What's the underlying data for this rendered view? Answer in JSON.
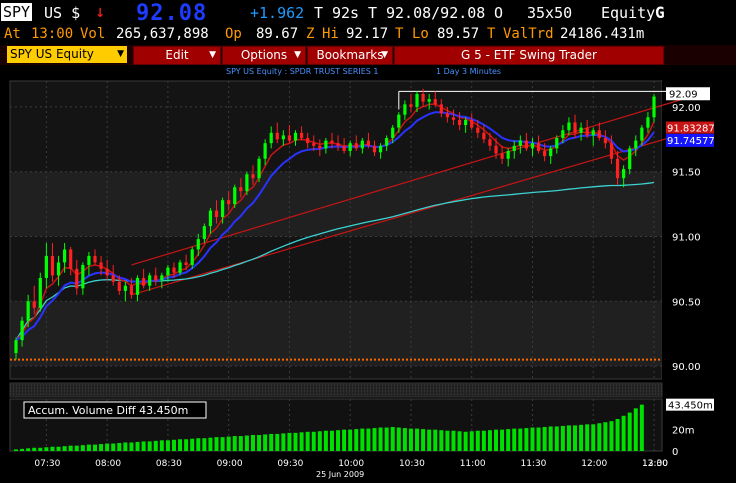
{
  "header": {
    "ticker": "SPY",
    "market": "US $",
    "direction_arrow": "↓",
    "last_price": "92.08",
    "change": "+1.962",
    "t_label": "T",
    "time_code": "92s",
    "t_label2": "T",
    "bid_ask": "92.08/92.08",
    "o_label": "O",
    "size": "35x50",
    "asset_class": "Equity",
    "asset_key": "G"
  },
  "quote_line": {
    "at_label": "At",
    "time": "13:00",
    "vol_label": "Vol",
    "volume": "265,637,898",
    "op_label": "Op",
    "open": "89.67",
    "z_label": "Z",
    "hi_label": "Hi",
    "high": "92.17",
    "t_label": "T",
    "lo_label": "Lo",
    "low": "89.57",
    "t_label2": "T",
    "valtrd_label": "ValTrd",
    "valtrd": "24186.431m"
  },
  "toolbar": {
    "security": "SPY US Equity",
    "edit": "Edit",
    "options": "Options",
    "bookmarks": "Bookmarks",
    "function_title": "G 5 - ETF Swing Trader"
  },
  "subtitle": {
    "security_desc": "SPY US Equity : SPDR TRUST SERIES 1",
    "period": "1 Day  3 Minutes"
  },
  "colors": {
    "up_candle": "#00ff00",
    "down_candle": "#ff2020",
    "ma_fast": "#c81414",
    "ma_slow": "#2a32ff",
    "vwap": "#3cd2d2",
    "trendline": "#c81414",
    "volume_bar": "#00e000",
    "price_box_ma_slow": "#1414ff",
    "price_box_ma_fast": "#c81414"
  },
  "price_panel": {
    "last_price_label": "92.09",
    "ma_fast_label": "91.83287",
    "ma_slow_label": "91.74577",
    "ticks": [
      "92.00",
      "91.50",
      "91.00",
      "90.50",
      "90.00"
    ]
  },
  "volume_panel": {
    "legend": "Accum. Volume Diff  43.450m",
    "last_label": "43.450m",
    "ticks": [
      "20m",
      "0"
    ]
  },
  "x_axis": {
    "ticks": [
      "07:30",
      "08:00",
      "08:30",
      "09:00",
      "09:30",
      "10:00",
      "10:30",
      "11:00",
      "11:30",
      "12:00",
      "12:30",
      "13:00"
    ],
    "date": "25 Jun 2009"
  },
  "chart_data": {
    "type": "candlestick",
    "interval": "3 Minutes",
    "ylim": [
      89.9,
      92.2
    ],
    "time_range": [
      "07:15",
      "13:00"
    ],
    "ohlc": [
      [
        90.1,
        90.22,
        90.05,
        90.2
      ],
      [
        90.2,
        90.38,
        90.15,
        90.35
      ],
      [
        90.35,
        90.55,
        90.3,
        90.5
      ],
      [
        90.5,
        90.62,
        90.4,
        90.45
      ],
      [
        90.45,
        90.72,
        90.42,
        90.68
      ],
      [
        90.68,
        90.95,
        90.6,
        90.85
      ],
      [
        90.85,
        90.95,
        90.65,
        90.7
      ],
      [
        90.7,
        90.85,
        90.62,
        90.8
      ],
      [
        90.8,
        90.95,
        90.72,
        90.9
      ],
      [
        90.9,
        90.92,
        90.7,
        90.75
      ],
      [
        90.75,
        90.82,
        90.55,
        90.6
      ],
      [
        90.6,
        90.8,
        90.55,
        90.78
      ],
      [
        90.78,
        90.88,
        90.7,
        90.85
      ],
      [
        90.85,
        90.9,
        90.78,
        90.8
      ],
      [
        90.8,
        90.85,
        90.7,
        90.75
      ],
      [
        90.75,
        90.82,
        90.66,
        90.7
      ],
      [
        90.7,
        90.78,
        90.62,
        90.65
      ],
      [
        90.65,
        90.7,
        90.55,
        90.58
      ],
      [
        90.58,
        90.65,
        90.5,
        90.62
      ],
      [
        90.62,
        90.68,
        90.52,
        90.55
      ],
      [
        90.55,
        90.7,
        90.5,
        90.68
      ],
      [
        90.68,
        90.75,
        90.6,
        90.62
      ],
      [
        90.62,
        90.72,
        90.58,
        90.7
      ],
      [
        90.7,
        90.76,
        90.62,
        90.66
      ],
      [
        90.66,
        90.72,
        90.6,
        90.7
      ],
      [
        90.7,
        90.78,
        90.65,
        90.76
      ],
      [
        90.76,
        90.8,
        90.68,
        90.72
      ],
      [
        90.72,
        90.82,
        90.7,
        90.8
      ],
      [
        90.8,
        90.86,
        90.74,
        90.78
      ],
      [
        90.78,
        90.92,
        90.75,
        90.9
      ],
      [
        90.9,
        91.02,
        90.85,
        90.98
      ],
      [
        90.98,
        91.1,
        90.95,
        91.08
      ],
      [
        91.08,
        91.22,
        91.02,
        91.2
      ],
      [
        91.2,
        91.28,
        91.1,
        91.15
      ],
      [
        91.15,
        91.3,
        91.1,
        91.28
      ],
      [
        91.28,
        91.35,
        91.2,
        91.25
      ],
      [
        91.25,
        91.4,
        91.22,
        91.38
      ],
      [
        91.38,
        91.45,
        91.3,
        91.35
      ],
      [
        91.35,
        91.5,
        91.32,
        91.48
      ],
      [
        91.48,
        91.55,
        91.4,
        91.45
      ],
      [
        91.45,
        91.62,
        91.42,
        91.6
      ],
      [
        91.6,
        91.75,
        91.55,
        91.72
      ],
      [
        91.72,
        91.85,
        91.68,
        91.8
      ],
      [
        91.8,
        91.88,
        91.72,
        91.75
      ],
      [
        91.75,
        91.82,
        91.7,
        91.78
      ],
      [
        91.78,
        91.86,
        91.72,
        91.74
      ],
      [
        91.74,
        91.82,
        91.7,
        91.8
      ],
      [
        91.8,
        91.85,
        91.74,
        91.76
      ],
      [
        91.76,
        91.8,
        91.68,
        91.72
      ],
      [
        91.72,
        91.78,
        91.66,
        91.7
      ],
      [
        91.7,
        91.75,
        91.62,
        91.68
      ],
      [
        91.68,
        91.76,
        91.64,
        91.74
      ],
      [
        91.74,
        91.8,
        91.68,
        91.72
      ],
      [
        91.72,
        91.78,
        91.66,
        91.7
      ],
      [
        91.7,
        91.76,
        91.64,
        91.66
      ],
      [
        91.66,
        91.74,
        91.62,
        91.72
      ],
      [
        91.72,
        91.78,
        91.66,
        91.68
      ],
      [
        91.68,
        91.76,
        91.64,
        91.74
      ],
      [
        91.74,
        91.8,
        91.68,
        91.7
      ],
      [
        91.7,
        91.74,
        91.62,
        91.65
      ],
      [
        91.65,
        91.72,
        91.6,
        91.7
      ],
      [
        91.7,
        91.78,
        91.66,
        91.76
      ],
      [
        91.76,
        91.86,
        91.72,
        91.84
      ],
      [
        91.84,
        91.96,
        91.8,
        91.94
      ],
      [
        91.94,
        92.05,
        91.9,
        92.02
      ],
      [
        92.02,
        92.1,
        91.96,
        92.0
      ],
      [
        92.0,
        92.12,
        91.96,
        92.1
      ],
      [
        92.1,
        92.14,
        92.0,
        92.04
      ],
      [
        92.04,
        92.1,
        91.98,
        92.06
      ],
      [
        92.06,
        92.12,
        92.0,
        92.02
      ],
      [
        92.02,
        92.06,
        91.92,
        91.95
      ],
      [
        91.95,
        92.0,
        91.88,
        91.92
      ],
      [
        91.92,
        91.98,
        91.86,
        91.9
      ],
      [
        91.9,
        91.96,
        91.82,
        91.86
      ],
      [
        91.86,
        91.92,
        91.8,
        91.9
      ],
      [
        91.9,
        91.95,
        91.82,
        91.84
      ],
      [
        91.84,
        91.9,
        91.76,
        91.8
      ],
      [
        91.8,
        91.86,
        91.72,
        91.75
      ],
      [
        91.75,
        91.8,
        91.66,
        91.7
      ],
      [
        91.7,
        91.76,
        91.6,
        91.64
      ],
      [
        91.64,
        91.7,
        91.56,
        91.6
      ],
      [
        91.6,
        91.68,
        91.54,
        91.66
      ],
      [
        91.66,
        91.74,
        91.6,
        91.7
      ],
      [
        91.7,
        91.78,
        91.64,
        91.74
      ],
      [
        91.74,
        91.8,
        91.66,
        91.68
      ],
      [
        91.68,
        91.76,
        91.62,
        91.72
      ],
      [
        91.72,
        91.78,
        91.64,
        91.66
      ],
      [
        91.66,
        91.72,
        91.58,
        91.62
      ],
      [
        91.62,
        91.7,
        91.56,
        91.68
      ],
      [
        91.68,
        91.78,
        91.64,
        91.76
      ],
      [
        91.76,
        91.86,
        91.72,
        91.82
      ],
      [
        91.82,
        91.92,
        91.78,
        91.88
      ],
      [
        91.88,
        91.94,
        91.76,
        91.8
      ],
      [
        91.8,
        91.88,
        91.74,
        91.84
      ],
      [
        91.84,
        91.9,
        91.76,
        91.78
      ],
      [
        91.78,
        91.84,
        91.7,
        91.82
      ],
      [
        91.82,
        91.88,
        91.74,
        91.76
      ],
      [
        91.76,
        91.82,
        91.68,
        91.72
      ],
      [
        91.72,
        91.78,
        91.56,
        91.6
      ],
      [
        91.6,
        91.66,
        91.4,
        91.45
      ],
      [
        91.45,
        91.55,
        91.38,
        91.52
      ],
      [
        91.52,
        91.7,
        91.48,
        91.68
      ],
      [
        91.68,
        91.78,
        91.62,
        91.74
      ],
      [
        91.74,
        91.86,
        91.7,
        91.84
      ],
      [
        91.84,
        91.96,
        91.8,
        91.92
      ],
      [
        91.92,
        92.1,
        91.88,
        92.08
      ]
    ],
    "accum_volume_diff_m": [
      1.5,
      2,
      2.5,
      3,
      3,
      3.5,
      4,
      4,
      4.5,
      5,
      5,
      5.5,
      6,
      6,
      6.5,
      7,
      7,
      7.5,
      8,
      8,
      8.5,
      9,
      9,
      9.5,
      10,
      10,
      10.5,
      11,
      11,
      11.5,
      12,
      12,
      12.5,
      13,
      13,
      13.5,
      14,
      14,
      14.5,
      15,
      15,
      15.5,
      16,
      16,
      16.5,
      17,
      17,
      17.5,
      18,
      18,
      18.5,
      19,
      19,
      19.5,
      20,
      20,
      20.5,
      21,
      21,
      21.5,
      22,
      22,
      22.5,
      22,
      21.5,
      21,
      21,
      20.5,
      20,
      20,
      19.5,
      19,
      19,
      18.5,
      18,
      18.5,
      19,
      19,
      19.5,
      20,
      20,
      20.5,
      21,
      21,
      21.5,
      22,
      22,
      22.5,
      23,
      23,
      23.5,
      24,
      24,
      24.5,
      25,
      25,
      26,
      27,
      28,
      30,
      33,
      36,
      40,
      43.45
    ],
    "volume_ylim": [
      0,
      45
    ]
  }
}
